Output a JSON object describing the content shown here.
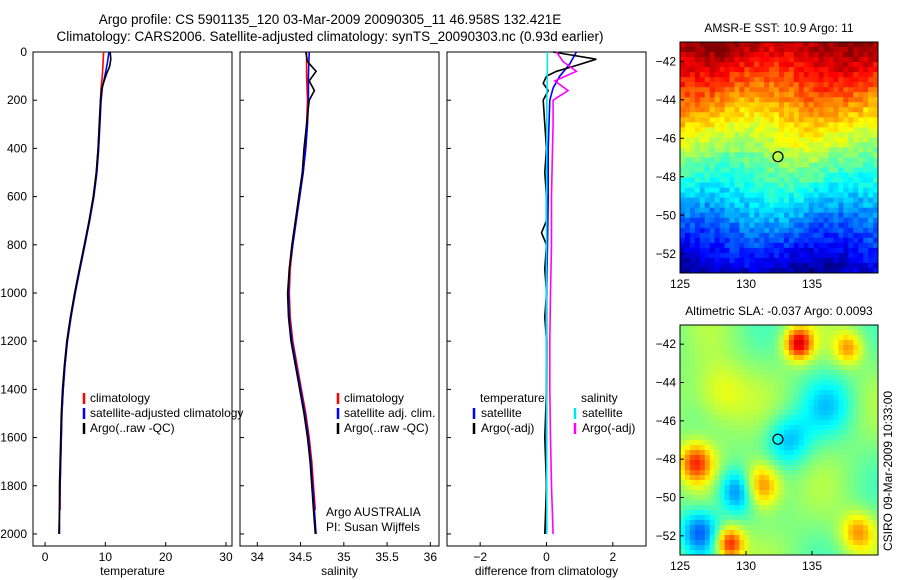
{
  "header": {
    "line1": "Argo profile: CS 5901135_120 03-Mar-2009 20090305_11 46.958S 132.421E",
    "line2": "Climatology: CARS2006. Satellite-adjusted climatology: synTS_20090303.nc (0.93d earlier)"
  },
  "colors": {
    "climatology": "#ff0000",
    "satellite": "#0000ff",
    "argo": "#000000",
    "sal_satellite": "#00e5ee",
    "sal_argo": "#ff00ff"
  },
  "chart_data": [
    {
      "name": "temperature-profile",
      "type": "line",
      "xlabel": "temperature",
      "ylabel": "",
      "xlim": [
        -2,
        31
      ],
      "ylim": [
        2050,
        0
      ],
      "xticks": [
        0,
        10,
        20,
        30
      ],
      "yticks": [
        0,
        200,
        400,
        600,
        800,
        1000,
        1200,
        1400,
        1600,
        1800,
        2000
      ],
      "legend": [
        "climatology",
        "satellite-adjusted climatology",
        "Argo(..raw -QC)"
      ],
      "series": [
        {
          "name": "climatology",
          "color": "#ff0000",
          "depth": [
            0,
            50,
            100,
            150,
            200,
            300,
            400,
            500,
            600,
            700,
            800,
            900,
            1000,
            1100,
            1200,
            1300,
            1400,
            1500,
            1600,
            1700,
            1800,
            1900
          ],
          "values": [
            9.7,
            9.6,
            9.5,
            9.3,
            9.2,
            9.0,
            8.8,
            8.5,
            8.0,
            7.3,
            6.6,
            5.8,
            5.0,
            4.3,
            3.7,
            3.3,
            3.0,
            2.8,
            2.7,
            2.6,
            2.5,
            2.5
          ]
        },
        {
          "name": "satellite-adjusted climatology",
          "color": "#0000ff",
          "depth": [
            0,
            50,
            100,
            150,
            200,
            300,
            400,
            500,
            600,
            700,
            800,
            900,
            1000,
            1100,
            1200,
            1300,
            1400,
            1500,
            1600,
            1700,
            1800,
            1900,
            2000
          ],
          "values": [
            10.6,
            10.3,
            9.9,
            9.5,
            9.3,
            9.1,
            8.9,
            8.6,
            8.1,
            7.4,
            6.6,
            5.8,
            5.0,
            4.3,
            3.7,
            3.3,
            3.0,
            2.8,
            2.7,
            2.6,
            2.5,
            2.4,
            2.4
          ]
        },
        {
          "name": "Argo(..raw -QC)",
          "color": "#000000",
          "depth": [
            0,
            30,
            60,
            90,
            120,
            150,
            200,
            300,
            400,
            500,
            600,
            700,
            800,
            900,
            1000,
            1100,
            1200,
            1300,
            1400,
            1500,
            1600,
            1700,
            1800,
            1900,
            2000
          ],
          "values": [
            10.8,
            10.9,
            10.7,
            10.2,
            9.8,
            9.4,
            9.2,
            9.0,
            8.8,
            8.5,
            8.0,
            7.3,
            6.5,
            5.7,
            4.9,
            4.2,
            3.6,
            3.2,
            2.9,
            2.7,
            2.6,
            2.5,
            2.4,
            2.4,
            2.3
          ]
        }
      ]
    },
    {
      "name": "salinity-profile",
      "type": "line",
      "xlabel": "salinity",
      "xlim": [
        33.8,
        36.1
      ],
      "ylim": [
        2050,
        0
      ],
      "xticks": [
        34,
        34.5,
        35,
        35.5,
        36
      ],
      "legend": [
        "climatology",
        "satellite adj. clim.",
        "Argo(..raw -QC)"
      ],
      "annotation": [
        "Argo AUSTRALIA",
        "PI: Susan Wijffels"
      ],
      "series": [
        {
          "name": "climatology",
          "color": "#ff0000",
          "depth": [
            0,
            100,
            200,
            300,
            400,
            500,
            600,
            700,
            800,
            900,
            1000,
            1100,
            1200,
            1300,
            1400,
            1500,
            1600,
            1700,
            1800,
            1900
          ],
          "values": [
            34.57,
            34.57,
            34.58,
            34.57,
            34.55,
            34.53,
            34.49,
            34.45,
            34.41,
            34.38,
            34.37,
            34.38,
            34.41,
            34.46,
            34.51,
            34.56,
            34.6,
            34.63,
            34.65,
            34.67
          ]
        },
        {
          "name": "satellite adj. clim.",
          "color": "#0000ff",
          "depth": [
            0,
            100,
            200,
            300,
            400,
            500,
            600,
            700,
            800,
            900,
            1000,
            1100,
            1200,
            1300,
            1400,
            1500,
            1600,
            1700,
            1800,
            1900,
            2000
          ],
          "values": [
            34.6,
            34.59,
            34.59,
            34.58,
            34.56,
            34.53,
            34.49,
            34.45,
            34.41,
            34.37,
            34.36,
            34.37,
            34.4,
            34.45,
            34.5,
            34.55,
            34.59,
            34.62,
            34.64,
            34.66,
            34.68
          ]
        },
        {
          "name": "Argo(..raw -QC)",
          "color": "#000000",
          "depth": [
            0,
            40,
            80,
            120,
            160,
            200,
            300,
            400,
            500,
            600,
            700,
            800,
            900,
            1000,
            1100,
            1200,
            1300,
            1400,
            1500,
            1600,
            1700,
            1800,
            1900,
            2000
          ],
          "values": [
            34.56,
            34.58,
            34.68,
            34.6,
            34.66,
            34.6,
            34.57,
            34.54,
            34.52,
            34.48,
            34.44,
            34.4,
            34.37,
            34.35,
            34.36,
            34.39,
            34.44,
            34.49,
            34.54,
            34.58,
            34.61,
            34.63,
            34.65,
            34.67
          ]
        }
      ]
    },
    {
      "name": "difference-profile",
      "type": "line",
      "xlabel": "difference from climatology",
      "xlim": [
        -3,
        3
      ],
      "ylim": [
        2050,
        0
      ],
      "xticks": [
        -2,
        0,
        2
      ],
      "legend": [
        "temperature",
        "satellite",
        "Argo(-adj)",
        "salinity",
        "satellite",
        "Argo(-adj)"
      ],
      "series": [
        {
          "name": "temperature satellite",
          "color": "#0000ff",
          "depth": [
            0,
            50,
            100,
            150,
            200,
            400,
            600,
            800,
            1000,
            1200,
            1400,
            1600,
            1800,
            2000
          ],
          "values": [
            0.9,
            0.7,
            0.4,
            0.2,
            0.1,
            0.05,
            0.05,
            0.03,
            0.0,
            0.0,
            0.0,
            0.0,
            0.0,
            0.0
          ]
        },
        {
          "name": "temperature Argo(-adj)",
          "color": "#000000",
          "depth": [
            0,
            30,
            60,
            80,
            100,
            130,
            160,
            200,
            300,
            400,
            500,
            600,
            700,
            750,
            800,
            900,
            1000,
            1100,
            1200,
            1400,
            1600,
            1800,
            2000
          ],
          "values": [
            0.2,
            1.5,
            0.8,
            0.3,
            0.0,
            -0.1,
            0.05,
            -0.1,
            -0.05,
            0.0,
            -0.05,
            0.0,
            0.0,
            -0.15,
            0.0,
            -0.05,
            0.0,
            -0.05,
            0.0,
            0.0,
            -0.05,
            0.0,
            -0.05
          ]
        },
        {
          "name": "salinity satellite",
          "color": "#00e5ee",
          "depth": [
            0,
            100,
            200,
            400,
            600,
            800,
            1000,
            1200,
            1400,
            1600,
            1800,
            2000
          ],
          "values": [
            0.03,
            0.02,
            0.01,
            0.01,
            0.0,
            0.0,
            -0.01,
            -0.01,
            0.0,
            0.0,
            0.01,
            0.01
          ]
        },
        {
          "name": "salinity Argo(-adj)",
          "color": "#ff00ff",
          "depth": [
            0,
            40,
            80,
            120,
            160,
            200,
            300,
            400,
            600,
            800,
            1000,
            1200,
            1400,
            1600,
            1800,
            2000
          ],
          "values": [
            0.3,
            0.5,
            0.9,
            0.25,
            0.65,
            0.2,
            0.2,
            0.18,
            0.15,
            0.15,
            0.12,
            0.1,
            0.1,
            0.12,
            0.15,
            0.2
          ]
        }
      ]
    },
    {
      "name": "sst-map",
      "type": "heatmap",
      "title": "AMSR-E SST: 10.9 Argo: 11",
      "xlim": [
        125,
        140
      ],
      "ylim": [
        -53,
        -41
      ],
      "xticks": [
        125,
        130,
        135
      ],
      "yticks": [
        -42,
        -44,
        -46,
        -48,
        -50,
        -52
      ],
      "marker": {
        "lon": 132.421,
        "lat": -46.958
      },
      "field": "warm (red) in the north grading to cold (blue) in the south"
    },
    {
      "name": "sla-map",
      "type": "heatmap",
      "title": "Altimetric SLA: -0.037 Argo: 0.0093",
      "xlim": [
        125,
        140
      ],
      "ylim": [
        -53,
        -41
      ],
      "xticks": [
        125,
        130,
        135
      ],
      "yticks": [
        -42,
        -44,
        -46,
        -48,
        -50,
        -52
      ],
      "marker": {
        "lon": 132.421,
        "lat": -46.958
      },
      "field": "mostly near-zero anomaly with scattered positive (orange) and negative (blue) eddies",
      "side_label": "CSIRO 09-Mar-2009 10:33:00"
    }
  ]
}
